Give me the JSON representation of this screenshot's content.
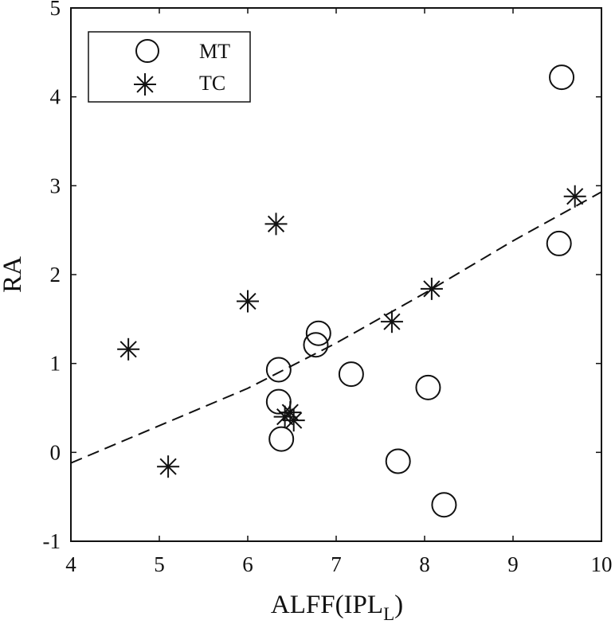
{
  "chart_data": {
    "type": "scatter",
    "xlabel": "ALFF(IPL",
    "xlabel_subscript": "L",
    "xlabel_close": ")",
    "ylabel": "RA",
    "xlim": [
      4,
      10
    ],
    "ylim": [
      -1,
      5
    ],
    "xticks": [
      "4",
      "5",
      "6",
      "7",
      "8",
      "9",
      "10"
    ],
    "yticks": [
      "-1",
      "0",
      "1",
      "2",
      "3",
      "4",
      "5"
    ],
    "grid": false,
    "legend_position": "top-left",
    "series": [
      {
        "name": "MT",
        "marker": "circle",
        "points": [
          [
            6.35,
            0.93
          ],
          [
            6.35,
            0.57
          ],
          [
            6.38,
            0.15
          ],
          [
            6.77,
            1.21
          ],
          [
            6.8,
            1.34
          ],
          [
            7.17,
            0.88
          ],
          [
            7.7,
            -0.1
          ],
          [
            8.04,
            0.73
          ],
          [
            8.22,
            -0.59
          ],
          [
            9.52,
            2.35
          ],
          [
            9.55,
            4.22
          ]
        ]
      },
      {
        "name": "TC",
        "marker": "asterisk",
        "points": [
          [
            4.65,
            1.16
          ],
          [
            5.1,
            -0.16
          ],
          [
            6.0,
            1.7
          ],
          [
            6.32,
            2.57
          ],
          [
            6.42,
            0.4
          ],
          [
            6.48,
            0.45
          ],
          [
            6.52,
            0.36
          ],
          [
            7.63,
            1.47
          ],
          [
            8.08,
            1.84
          ],
          [
            9.7,
            2.88
          ]
        ]
      }
    ],
    "fit_line": {
      "style": "dashed",
      "points": [
        [
          4.0,
          -0.12
        ],
        [
          6.0,
          0.72
        ],
        [
          7.0,
          1.23
        ],
        [
          8.0,
          1.79
        ],
        [
          9.0,
          2.38
        ],
        [
          10.0,
          2.93
        ]
      ]
    }
  }
}
